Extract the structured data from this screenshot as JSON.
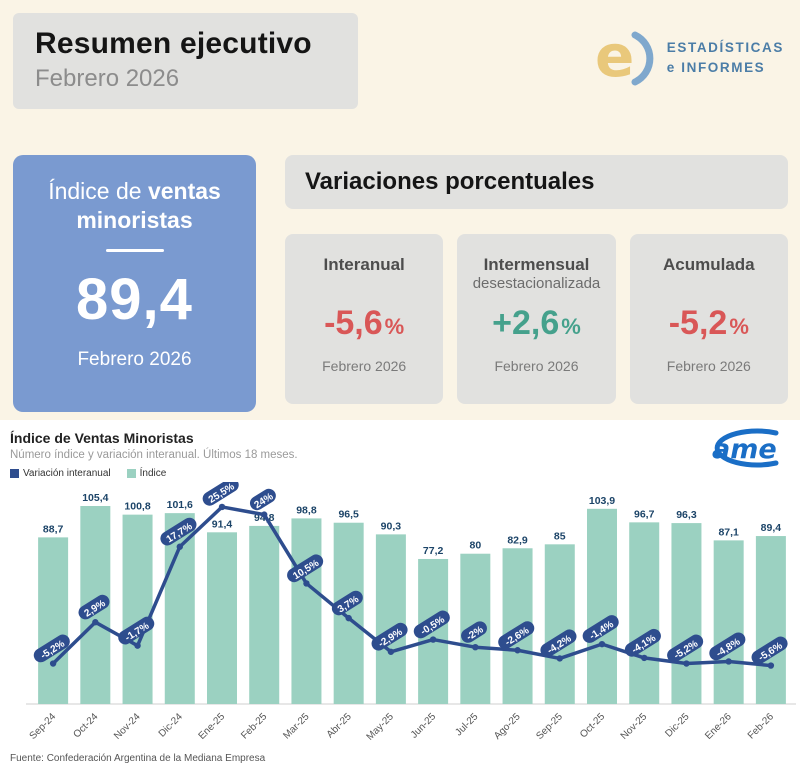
{
  "header": {
    "title": "Resumen ejecutivo",
    "subtitle": "Febrero 2026"
  },
  "brand": {
    "icon_letter": "e",
    "line1": "ESTADÍSTICAS",
    "line2": "e INFORMES"
  },
  "index_card": {
    "title_pre": "Índice de ",
    "title_bold": "ventas",
    "title_line2": "minoristas",
    "value": "89,4",
    "period": "Febrero 2026"
  },
  "variations": {
    "title": "Variaciones porcentuales",
    "cards": [
      {
        "label": "Interanual",
        "value": "-5,6",
        "suffix": "%",
        "period": "Febrero 2026",
        "color": "#d95757"
      },
      {
        "label": "Intermensual",
        "label2": "desestacionalizada",
        "value": "+2,6",
        "suffix": "%",
        "period": "Febrero 2026",
        "color": "#45a18c"
      },
      {
        "label": "Acumulada",
        "value": "-5,2",
        "suffix": "%",
        "period": "Febrero 2026",
        "color": "#d95757"
      }
    ]
  },
  "chart": {
    "title": "Índice de Ventas Minoristas",
    "subtitle": "Número índice y variación interanual. Últimos 18 meses.",
    "legend": [
      {
        "label": "Variación interanual",
        "color": "#2e4d8e"
      },
      {
        "label": "Índice",
        "color": "#9bd1c1"
      }
    ],
    "came_label": "ame",
    "footer": "Fuente: Confederación Argentina de la Mediana Empresa"
  },
  "chart_data": {
    "type": "bar",
    "title": "Índice de Ventas Minoristas",
    "xlabel": "",
    "ylabel": "",
    "categories": [
      "Sep-24",
      "Oct-24",
      "Nov-24",
      "Dic-24",
      "Ene-25",
      "Feb-25",
      "Mar-25",
      "Abr-25",
      "May-25",
      "Jun-25",
      "Jul-25",
      "Ago-25",
      "Sep-25",
      "Oct-25",
      "Nov-25",
      "Dic-25",
      "Ene-26",
      "Feb-26"
    ],
    "series": [
      {
        "name": "Índice",
        "type": "bar",
        "values": [
          88.7,
          105.4,
          100.8,
          101.6,
          91.4,
          94.8,
          98.8,
          96.5,
          90.3,
          77.2,
          80,
          82.9,
          85,
          103.9,
          96.7,
          96.3,
          87.1,
          89.4
        ],
        "value_labels": [
          "88,7",
          "105,4",
          "100,8",
          "101,6",
          "91,4",
          "94,8",
          "98,8",
          "96,5",
          "90,3",
          "77,2",
          "80",
          "82,9",
          "85",
          "103,9",
          "96,7",
          "96,3",
          "87,1",
          "89,4"
        ]
      },
      {
        "name": "Variación interanual",
        "type": "line",
        "values": [
          -5.2,
          2.9,
          -1.7,
          17.7,
          25.5,
          24,
          10.5,
          3.7,
          -2.9,
          -0.5,
          -2,
          -2.6,
          -4.2,
          -1.4,
          -4.1,
          -5.2,
          -4.8,
          -5.6
        ],
        "value_labels": [
          "-5,2%",
          "2,9%",
          "-1,7%",
          "17,7%",
          "25,5%",
          "24%",
          "10,5%",
          "3,7%",
          "-2,9%",
          "-0,5%",
          "-2%",
          "-2,6%",
          "-4,2%",
          "-1,4%",
          "-4,1%",
          "-5,2%",
          "-4,8%",
          "-5,6%"
        ]
      }
    ],
    "bar_color": "#9bd1c1",
    "bar_label_color": "#1c4468",
    "line_color": "#2e4d8e",
    "legend_position": "top-left",
    "grid": false
  }
}
